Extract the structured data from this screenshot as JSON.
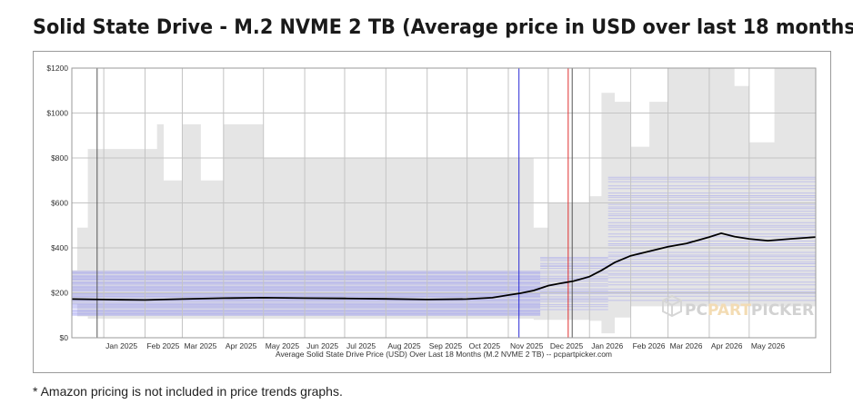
{
  "page": {
    "title": "Solid State Drive - M.2 NVME 2 TB (Average price in USD over last 18 months)",
    "footnote": "* Amazon pricing is not included in price trends graphs."
  },
  "watermark": {
    "part1": "PC",
    "part2": "PART",
    "part3": "PICKER",
    "icon": "box-icon"
  },
  "colors": {
    "plot_bg": "#ffffff",
    "grid": "#c4c4c4",
    "range_fill": "#e5e5e5",
    "retailer_lines": "#8f8ff0",
    "average_line": "#000000",
    "marker_blue": "#2b2bd6",
    "marker_red": "#e03030",
    "marker_gray": "#555555",
    "watermark": "#cfcfcf",
    "watermark_accent": "#f2d6a8"
  },
  "chart_data": {
    "type": "line",
    "title": "Solid State Drive - M.2 NVME 2 TB (Average price in USD over last 18 months)",
    "xlabel": "Average Solid State Drive Price (USD) Over Last 18 Months (M.2 NVME 2 TB) -- pcpartpicker.com",
    "ylabel": "",
    "x_range": [
      "2024-12-08",
      "2026-06-20"
    ],
    "ylim": [
      0,
      1200
    ],
    "y_ticks": [
      0,
      200,
      400,
      600,
      800,
      1000,
      1200
    ],
    "y_tick_labels": [
      "$0",
      "$200",
      "$400",
      "$600",
      "$800",
      "$1000",
      "$1200"
    ],
    "x_ticks": [
      "2025-01-01",
      "2025-02-01",
      "2025-03-01",
      "2025-04-01",
      "2025-05-01",
      "2025-06-01",
      "2025-07-01",
      "2025-08-01",
      "2025-09-01",
      "2025-10-01",
      "2025-11-01",
      "2025-12-01",
      "2026-01-01",
      "2026-02-01",
      "2026-03-01",
      "2026-04-01",
      "2026-05-01"
    ],
    "x_tick_labels": [
      "Jan 2025",
      "Feb 2025",
      "Mar 2025",
      "Apr 2025",
      "May 2025",
      "Jun 2025",
      "Jul 2025",
      "Aug 2025",
      "Sep 2025",
      "Oct 2025",
      "Nov 2025",
      "Dec 2025",
      "Jan 2026",
      "Feb 2026",
      "Mar 2026",
      "Apr 2026",
      "May 2026"
    ],
    "grid": true,
    "legend": "none",
    "average_series": {
      "x": [
        "2024-12-08",
        "2025-01-01",
        "2025-02-01",
        "2025-03-01",
        "2025-04-01",
        "2025-05-01",
        "2025-06-01",
        "2025-07-01",
        "2025-08-01",
        "2025-09-01",
        "2025-10-01",
        "2025-10-20",
        "2025-11-01",
        "2025-11-10",
        "2025-11-20",
        "2025-12-01",
        "2025-12-10",
        "2025-12-20",
        "2026-01-01",
        "2026-01-10",
        "2026-01-20",
        "2026-02-01",
        "2026-02-15",
        "2026-03-01",
        "2026-03-15",
        "2026-04-01",
        "2026-04-10",
        "2026-04-20",
        "2026-05-01",
        "2026-05-15",
        "2026-06-01",
        "2026-06-20"
      ],
      "y": [
        172,
        170,
        168,
        172,
        176,
        178,
        176,
        175,
        173,
        170,
        172,
        178,
        190,
        198,
        210,
        232,
        242,
        252,
        272,
        300,
        335,
        365,
        385,
        405,
        420,
        448,
        465,
        450,
        440,
        432,
        440,
        448
      ]
    },
    "price_range": {
      "x": [
        "2024-12-08",
        "2024-12-12",
        "2024-12-20",
        "2025-01-10",
        "2025-02-05",
        "2025-02-10",
        "2025-02-15",
        "2025-03-01",
        "2025-03-15",
        "2025-04-01",
        "2025-05-01",
        "2025-07-01",
        "2025-09-01",
        "2025-10-01",
        "2025-11-01",
        "2025-11-20",
        "2025-12-01",
        "2025-12-20",
        "2026-01-01",
        "2026-01-10",
        "2026-01-20",
        "2026-02-01",
        "2026-02-15",
        "2026-03-01",
        "2026-03-20",
        "2026-04-01",
        "2026-04-20",
        "2026-05-01",
        "2026-05-20",
        "2026-06-01",
        "2026-06-20"
      ],
      "low": [
        150,
        95,
        85,
        85,
        85,
        85,
        85,
        85,
        85,
        85,
        85,
        85,
        85,
        85,
        85,
        80,
        80,
        80,
        75,
        20,
        90,
        140,
        140,
        140,
        140,
        140,
        140,
        140,
        140,
        140,
        140
      ],
      "high": [
        300,
        490,
        840,
        840,
        840,
        950,
        700,
        950,
        700,
        950,
        800,
        800,
        800,
        800,
        800,
        490,
        600,
        600,
        630,
        1090,
        1050,
        850,
        1050,
        1200,
        1200,
        1200,
        1120,
        870,
        1200,
        1200,
        1200
      ]
    },
    "markers": [
      {
        "x": "2024-12-27",
        "color": "#555555"
      },
      {
        "x": "2025-11-09",
        "color": "#2b2bd6"
      },
      {
        "x": "2025-12-16",
        "color": "#e03030"
      },
      {
        "x": "2025-12-19",
        "color": "#555555"
      }
    ],
    "retailer_lines": [
      {
        "low": 100,
        "high": 300,
        "count": 48,
        "x_from": "2024-12-08",
        "x_to": "2025-11-25"
      },
      {
        "low": 120,
        "high": 360,
        "count": 26,
        "x_from": "2025-11-25",
        "x_to": "2026-01-15"
      },
      {
        "low": 160,
        "high": 720,
        "count": 44,
        "x_from": "2026-01-15",
        "x_to": "2026-06-20"
      }
    ]
  }
}
